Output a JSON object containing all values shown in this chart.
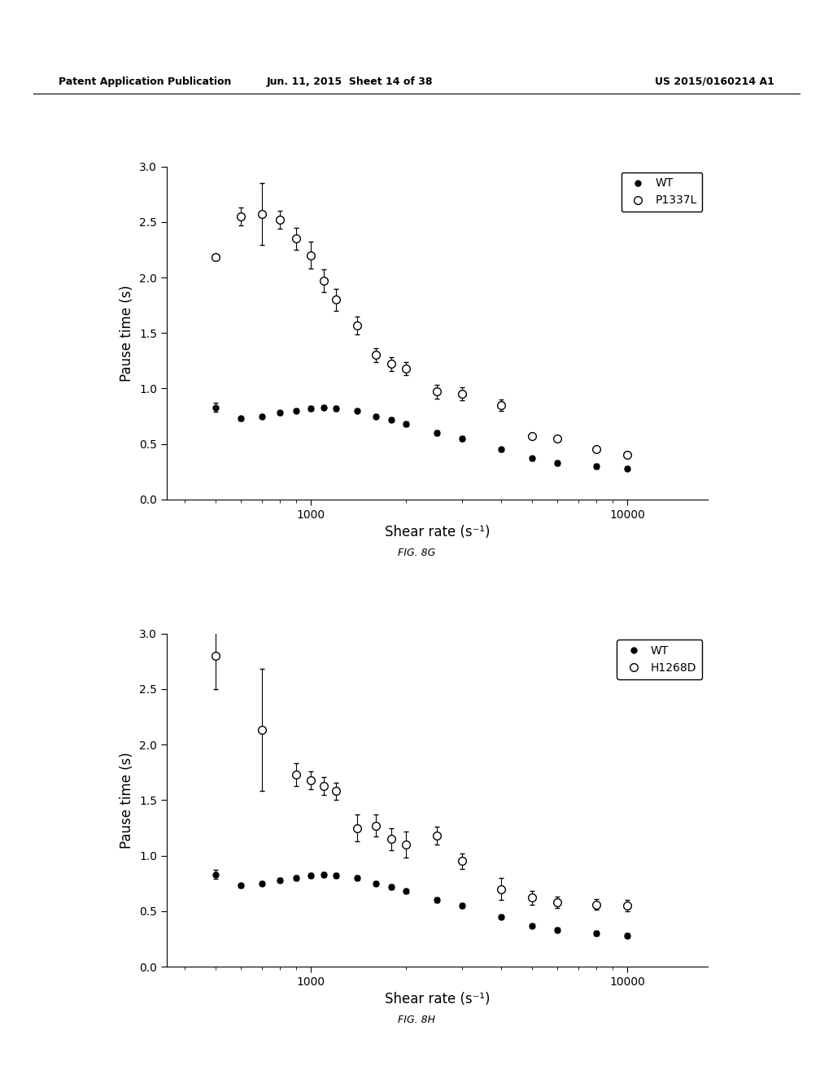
{
  "header_left": "Patent Application Publication",
  "header_mid": "Jun. 11, 2015  Sheet 14 of 38",
  "header_right": "US 2015/0160214 A1",
  "fig_label_top": "FIG. 8G",
  "fig_label_bot": "FIG. 8H",
  "xlabel": "Shear rate (s⁻¹)",
  "ylabel": "Pause time (s)",
  "ylim": [
    0.0,
    3.0
  ],
  "yticks": [
    0.0,
    0.5,
    1.0,
    1.5,
    2.0,
    2.5,
    3.0
  ],
  "xlim_log": [
    350,
    18000
  ],
  "xticks_log": [
    1000,
    10000
  ],
  "xticklabels": [
    "1000",
    "10000"
  ],
  "top_wt_x": [
    500,
    600,
    700,
    800,
    900,
    1000,
    1100,
    1200,
    1400,
    1600,
    1800,
    2000,
    2500,
    3000,
    4000,
    5000,
    6000,
    8000,
    10000
  ],
  "top_wt_y": [
    0.83,
    0.73,
    0.75,
    0.78,
    0.8,
    0.82,
    0.83,
    0.82,
    0.8,
    0.75,
    0.72,
    0.68,
    0.6,
    0.55,
    0.45,
    0.37,
    0.33,
    0.3,
    0.28
  ],
  "top_wt_yerr": [
    0.04,
    0.02,
    0.02,
    0.02,
    0.02,
    0.02,
    0.02,
    0.02,
    0.02,
    0.02,
    0.02,
    0.02,
    0.02,
    0.02,
    0.02,
    0.02,
    0.02,
    0.02,
    0.02
  ],
  "top_mut_x": [
    500,
    600,
    700,
    800,
    900,
    1000,
    1100,
    1200,
    1400,
    1600,
    1800,
    2000,
    2500,
    3000,
    4000,
    5000,
    6000,
    8000,
    10000
  ],
  "top_mut_y": [
    2.18,
    2.55,
    2.57,
    2.52,
    2.35,
    2.2,
    1.97,
    1.8,
    1.57,
    1.3,
    1.22,
    1.18,
    0.97,
    0.95,
    0.85,
    0.57,
    0.55,
    0.45,
    0.4
  ],
  "top_mut_yerr": [
    0.0,
    0.08,
    0.28,
    0.08,
    0.1,
    0.12,
    0.1,
    0.1,
    0.08,
    0.06,
    0.06,
    0.06,
    0.06,
    0.06,
    0.05,
    0.0,
    0.0,
    0.0,
    0.0
  ],
  "top_legend_label1": "WT",
  "top_legend_label2": "P1337L",
  "bot_wt_x": [
    500,
    600,
    700,
    800,
    900,
    1000,
    1100,
    1200,
    1400,
    1600,
    1800,
    2000,
    2500,
    3000,
    4000,
    5000,
    6000,
    8000,
    10000
  ],
  "bot_wt_y": [
    0.83,
    0.73,
    0.75,
    0.78,
    0.8,
    0.82,
    0.83,
    0.82,
    0.8,
    0.75,
    0.72,
    0.68,
    0.6,
    0.55,
    0.45,
    0.37,
    0.33,
    0.3,
    0.28
  ],
  "bot_wt_yerr": [
    0.04,
    0.02,
    0.02,
    0.02,
    0.02,
    0.02,
    0.02,
    0.02,
    0.02,
    0.02,
    0.02,
    0.02,
    0.02,
    0.02,
    0.02,
    0.02,
    0.02,
    0.02,
    0.02
  ],
  "bot_mut_x": [
    500,
    700,
    900,
    1000,
    1100,
    1200,
    1400,
    1600,
    1800,
    2000,
    2500,
    3000,
    4000,
    5000,
    6000,
    8000,
    10000
  ],
  "bot_mut_y": [
    2.8,
    2.13,
    1.73,
    1.68,
    1.63,
    1.58,
    1.25,
    1.27,
    1.15,
    1.1,
    1.18,
    0.95,
    0.7,
    0.62,
    0.58,
    0.56,
    0.55
  ],
  "bot_mut_yerr": [
    0.3,
    0.55,
    0.1,
    0.08,
    0.08,
    0.08,
    0.12,
    0.1,
    0.1,
    0.12,
    0.08,
    0.07,
    0.1,
    0.06,
    0.05,
    0.05,
    0.05
  ],
  "bot_legend_label1": "WT",
  "bot_legend_label2": "H1268D",
  "marker_filled": "o",
  "marker_open": "o",
  "markersize": 5,
  "color_filled": "black",
  "color_open": "white",
  "ecolor": "black",
  "capsize": 2,
  "elinewidth": 0.8,
  "background_color": "#ffffff",
  "fontsize_label": 12,
  "fontsize_tick": 10,
  "fontsize_legend": 10,
  "fontsize_fig_label": 9,
  "fontsize_header": 9
}
